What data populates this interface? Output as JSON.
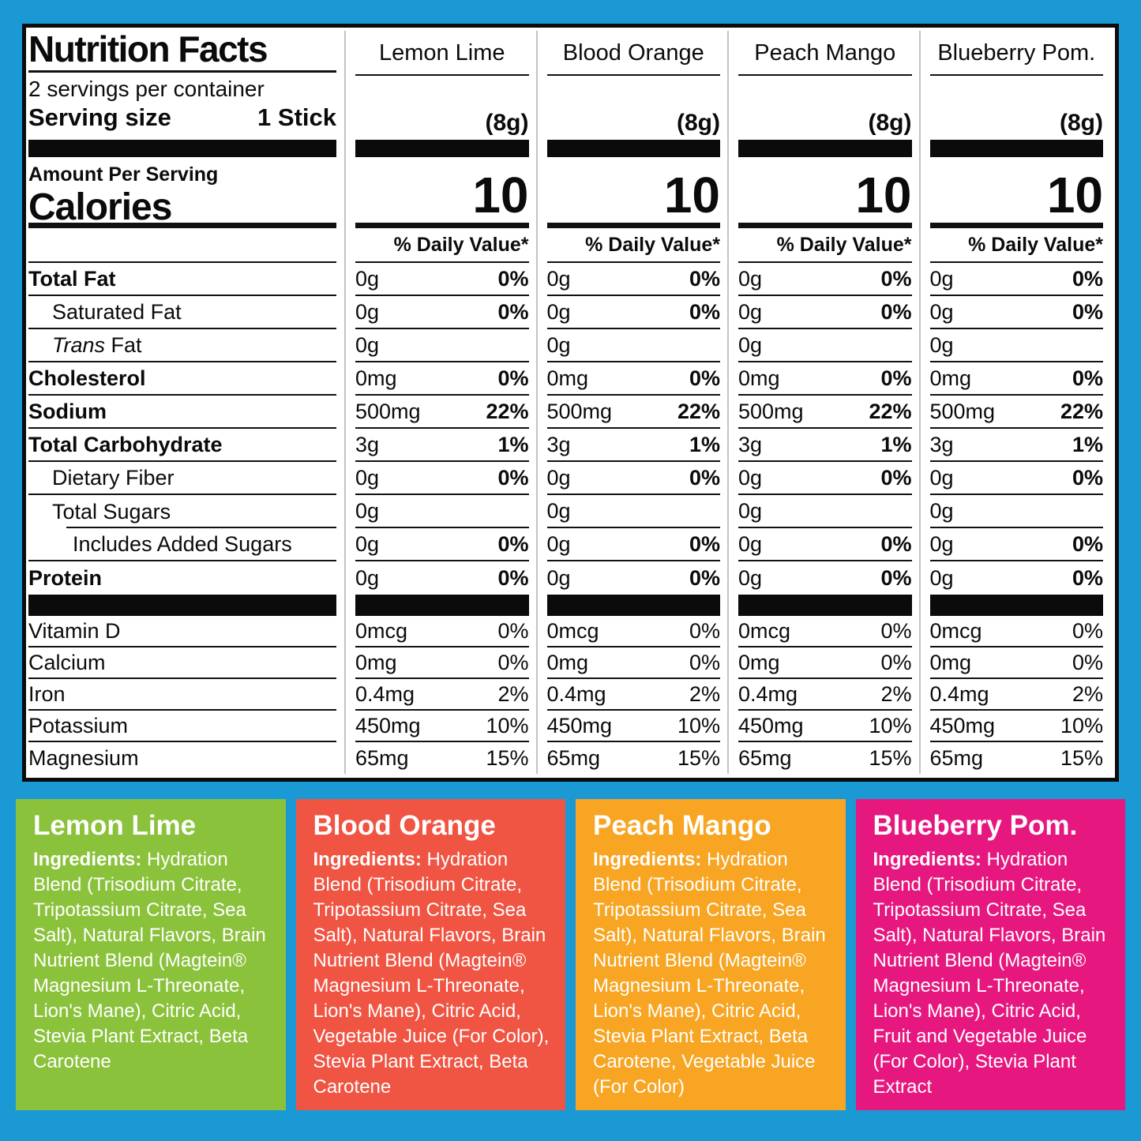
{
  "colors": {
    "frame_blue": "#1b99d5",
    "panel_border": "#0c0c0c",
    "lemon_lime_green": "#8bc23c",
    "blood_orange_red": "#f05442",
    "peach_mango_orange": "#f7a522",
    "blueberry_pom_pink": "#e6187f"
  },
  "panel": {
    "title": "Nutrition Facts",
    "servings": "2 servings per container",
    "serving_size_label": "Serving size",
    "serving_size_value": "1 Stick",
    "amount_per_serving": "Amount Per Serving",
    "calories_label": "Calories",
    "dv_header": "% Daily Value*",
    "columns": [
      {
        "name": "Lemon Lime",
        "grams": "(8g)",
        "calories": "10"
      },
      {
        "name": "Blood Orange",
        "grams": "(8g)",
        "calories": "10"
      },
      {
        "name": "Peach Mango",
        "grams": "(8g)",
        "calories": "10"
      },
      {
        "name": "Blueberry Pom.",
        "grams": "(8g)",
        "calories": "10"
      }
    ],
    "rows": [
      {
        "label_text": "Total Fat",
        "bold": true,
        "indent": 0,
        "amount": "0g",
        "dv": "0%",
        "dv_bold": true
      },
      {
        "label_text": "Saturated Fat",
        "indent": 1,
        "amount": "0g",
        "dv": "0%",
        "dv_bold": true
      },
      {
        "label_italic": "Trans",
        "label_text": " Fat",
        "indent": 1,
        "amount": "0g"
      },
      {
        "label_text": "Cholesterol",
        "bold": true,
        "indent": 0,
        "amount": "0mg",
        "dv": "0%",
        "dv_bold": true
      },
      {
        "label_text": "Sodium",
        "bold": true,
        "indent": 0,
        "amount": "500mg",
        "dv": "22%",
        "dv_bold": true
      },
      {
        "label_text": "Total Carbohydrate",
        "bold": true,
        "indent": 0,
        "amount": "3g",
        "dv": "1%",
        "dv_bold": true
      },
      {
        "label_text": "Dietary Fiber",
        "indent": 1,
        "amount": "0g",
        "dv": "0%",
        "dv_bold": true
      },
      {
        "label_text": "Total Sugars",
        "indent": 1,
        "amount": "0g",
        "indent_line": true
      },
      {
        "label_text": "Includes Added Sugars",
        "indent": 2,
        "amount": "0g",
        "dv": "0%",
        "dv_bold": true
      },
      {
        "label_text": "Protein",
        "bold": true,
        "indent": 0,
        "amount": "0g",
        "dv": "0%",
        "dv_bold": true,
        "no_line": true
      }
    ],
    "vitamins": [
      {
        "label_text": "Vitamin D",
        "amount": "0mcg",
        "dv": "0%"
      },
      {
        "label_text": "Calcium",
        "amount": "0mg",
        "dv": "0%"
      },
      {
        "label_text": "Iron",
        "amount": "0.4mg",
        "dv": "2%"
      },
      {
        "label_text": "Potassium",
        "amount": "450mg",
        "dv": "10%"
      },
      {
        "label_text": "Magnesium",
        "amount": "65mg",
        "dv": "15%",
        "no_line": true
      }
    ]
  },
  "flavors": [
    {
      "name": "Lemon Lime",
      "color": "#8bc23c",
      "ingredients_label": "Ingredients:",
      "ingredients": "Hydration Blend (Trisodium Citrate, Tripotassium Citrate, Sea Salt), Natural Flavors, Brain Nutrient Blend (Magtein® Magnesium L-Threonate, Lion's Mane), Citric Acid, Stevia Plant Extract, Beta Carotene"
    },
    {
      "name": "Blood Orange",
      "color": "#f05442",
      "ingredients_label": "Ingredients:",
      "ingredients": "Hydration Blend (Trisodium Citrate, Tripotassium Citrate, Sea Salt), Natural Flavors, Brain Nutrient Blend (Magtein® Magnesium L-Threonate, Lion's Mane), Citric Acid, Vegetable Juice (For Color), Stevia Plant Extract, Beta Carotene"
    },
    {
      "name": "Peach Mango",
      "color": "#f7a522",
      "ingredients_label": "Ingredients:",
      "ingredients": "Hydration Blend (Trisodium Citrate, Tripotassium Citrate, Sea Salt), Natural Flavors, Brain Nutrient Blend (Magtein® Magnesium L-Threonate, Lion's Mane), Citric Acid, Stevia Plant Extract, Beta Carotene, Vegetable Juice (For Color)"
    },
    {
      "name": "Blueberry Pom.",
      "color": "#e6187f",
      "ingredients_label": "Ingredients:",
      "ingredients": "Hydration Blend (Trisodium Citrate, Tripotassium Citrate, Sea Salt), Natural Flavors, Brain Nutrient Blend (Magtein® Magnesium L-Threonate, Lion's Mane), Citric Acid, Fruit and Vegetable Juice (For Color), Stevia Plant Extract"
    }
  ]
}
